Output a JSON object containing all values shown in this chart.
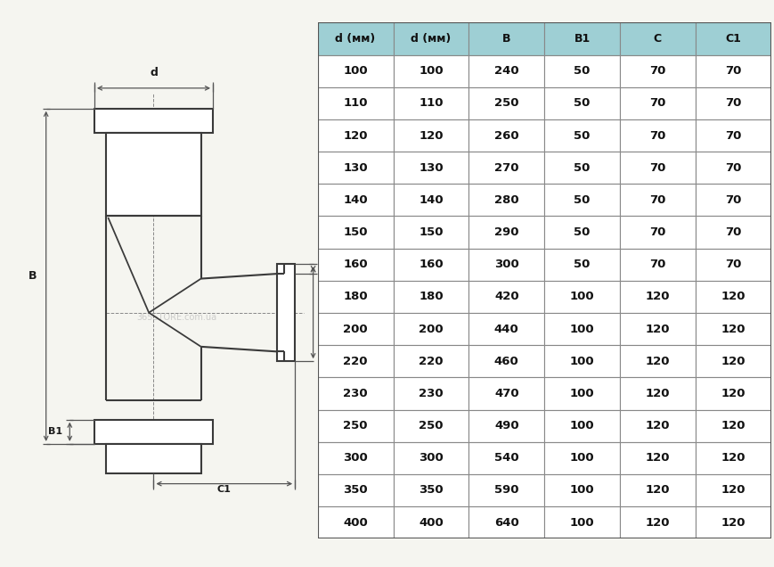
{
  "table_headers": [
    "d (мм)",
    "d (мм)",
    "B",
    "B1",
    "C",
    "C1"
  ],
  "table_rows": [
    [
      "100",
      "100",
      "240",
      "50",
      "70",
      "70"
    ],
    [
      "110",
      "110",
      "250",
      "50",
      "70",
      "70"
    ],
    [
      "120",
      "120",
      "260",
      "50",
      "70",
      "70"
    ],
    [
      "130",
      "130",
      "270",
      "50",
      "70",
      "70"
    ],
    [
      "140",
      "140",
      "280",
      "50",
      "70",
      "70"
    ],
    [
      "150",
      "150",
      "290",
      "50",
      "70",
      "70"
    ],
    [
      "160",
      "160",
      "300",
      "50",
      "70",
      "70"
    ],
    [
      "180",
      "180",
      "420",
      "100",
      "120",
      "120"
    ],
    [
      "200",
      "200",
      "440",
      "100",
      "120",
      "120"
    ],
    [
      "220",
      "220",
      "460",
      "100",
      "120",
      "120"
    ],
    [
      "230",
      "230",
      "470",
      "100",
      "120",
      "120"
    ],
    [
      "250",
      "250",
      "490",
      "100",
      "120",
      "120"
    ],
    [
      "300",
      "300",
      "540",
      "100",
      "120",
      "120"
    ],
    [
      "350",
      "350",
      "590",
      "100",
      "120",
      "120"
    ],
    [
      "400",
      "400",
      "640",
      "100",
      "120",
      "120"
    ]
  ],
  "header_bg": "#9ecfd4",
  "border_color": "#888888",
  "text_color": "#1a1a1a",
  "line_color": "#3a3a3a",
  "dim_color": "#555555",
  "watermark": "365STORE.com.ua",
  "bg_color": "#f5f5f0",
  "panel_bg": "#f5f5f0"
}
